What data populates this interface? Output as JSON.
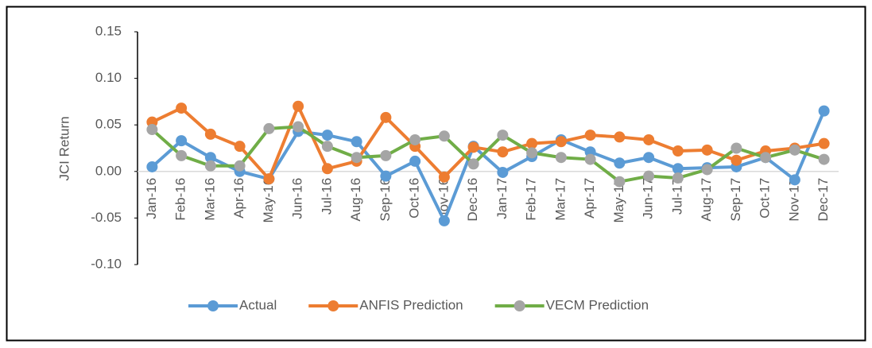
{
  "chart_data": {
    "type": "line",
    "y_label": "JCI Return",
    "categories": [
      "Jan-16",
      "Feb-16",
      "Mar-16",
      "Apr-16",
      "May-16",
      "Jun-16",
      "Jul-16",
      "Aug-16",
      "Sep-16",
      "Oct-16",
      "Nov-16",
      "Dec-16",
      "Jan-17",
      "Feb-17",
      "Mar-17",
      "Apr-17",
      "May-17",
      "Jun-17",
      "Jul-17",
      "Aug-17",
      "Sep-17",
      "Oct-17",
      "Nov-17",
      "Dec-17"
    ],
    "series": [
      {
        "name": "Actual",
        "color": "#5b9bd5",
        "marker_color": "#5b9bd5",
        "values": [
          0.005,
          0.033,
          0.015,
          0.0,
          -0.008,
          0.043,
          0.039,
          0.032,
          -0.005,
          0.011,
          -0.053,
          0.027,
          -0.001,
          0.016,
          0.034,
          0.021,
          0.009,
          0.015,
          0.003,
          0.004,
          0.005,
          0.015,
          -0.009,
          0.065
        ]
      },
      {
        "name": "ANFIS Prediction",
        "color": "#ed7d31",
        "marker_color": "#ed7d31",
        "values": [
          0.053,
          0.068,
          0.04,
          0.027,
          -0.008,
          0.07,
          0.003,
          0.011,
          0.058,
          0.027,
          -0.006,
          0.026,
          0.021,
          0.03,
          0.032,
          0.039,
          0.037,
          0.034,
          0.022,
          0.023,
          0.012,
          0.022,
          0.025,
          0.03
        ]
      },
      {
        "name": "VECM Prediction",
        "color": "#70ad47",
        "marker_color": "#a5a5a5",
        "values": [
          0.045,
          0.017,
          0.006,
          0.006,
          0.046,
          0.048,
          0.027,
          0.015,
          0.017,
          0.034,
          0.038,
          0.008,
          0.039,
          0.02,
          0.015,
          0.013,
          -0.011,
          -0.005,
          -0.007,
          0.002,
          0.025,
          0.015,
          0.023,
          0.013
        ]
      }
    ],
    "ylim": [
      -0.1,
      0.15
    ],
    "yticks": [
      {
        "value": -0.1,
        "label": "-0.10"
      },
      {
        "value": -0.05,
        "label": "-0.05"
      },
      {
        "value": 0,
        "label": "0.00"
      },
      {
        "value": 0.05,
        "label": "0.05"
      },
      {
        "value": 0.1,
        "label": "0.10"
      },
      {
        "value": 0.15,
        "label": "0.15"
      }
    ],
    "grid": false,
    "legend": "bottom"
  }
}
